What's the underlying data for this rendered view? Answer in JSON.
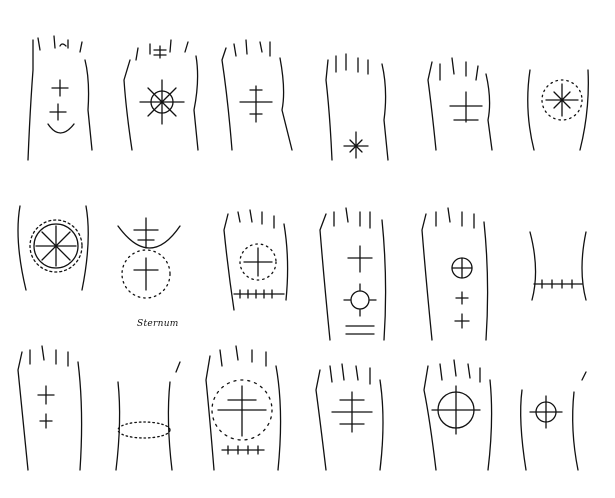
{
  "plate": {
    "caption": "Sternum",
    "colors": {
      "ink": "#111111",
      "paper": "#ffffff"
    },
    "figures": [
      {
        "name": "hand-two-crosses-arc",
        "kind": "hand"
      },
      {
        "name": "hand-sunburst-circle",
        "kind": "hand"
      },
      {
        "name": "hand-single-cross",
        "kind": "hand"
      },
      {
        "name": "hand-wrist-cross",
        "kind": "hand"
      },
      {
        "name": "hand-anchor-cross",
        "kind": "hand"
      },
      {
        "name": "arm-dotted-circle-cross",
        "kind": "arm"
      },
      {
        "name": "arm-toothed-circle",
        "kind": "arm"
      },
      {
        "name": "sternum-motif",
        "kind": "chest"
      },
      {
        "name": "hand-dotted-circle-band",
        "kind": "hand"
      },
      {
        "name": "arm-cross-sun-bars",
        "kind": "arm"
      },
      {
        "name": "arm-circle-crosses",
        "kind": "arm"
      },
      {
        "name": "leg-band",
        "kind": "leg"
      },
      {
        "name": "hand-plain-crosses",
        "kind": "hand"
      },
      {
        "name": "arm-dotted-ring",
        "kind": "arm"
      },
      {
        "name": "hand-cross-flower-ring",
        "kind": "hand"
      },
      {
        "name": "hand-cluster-crosses",
        "kind": "hand"
      },
      {
        "name": "hand-rayed-circle",
        "kind": "hand"
      },
      {
        "name": "hand-small-rayed-circle",
        "kind": "hand"
      }
    ]
  }
}
